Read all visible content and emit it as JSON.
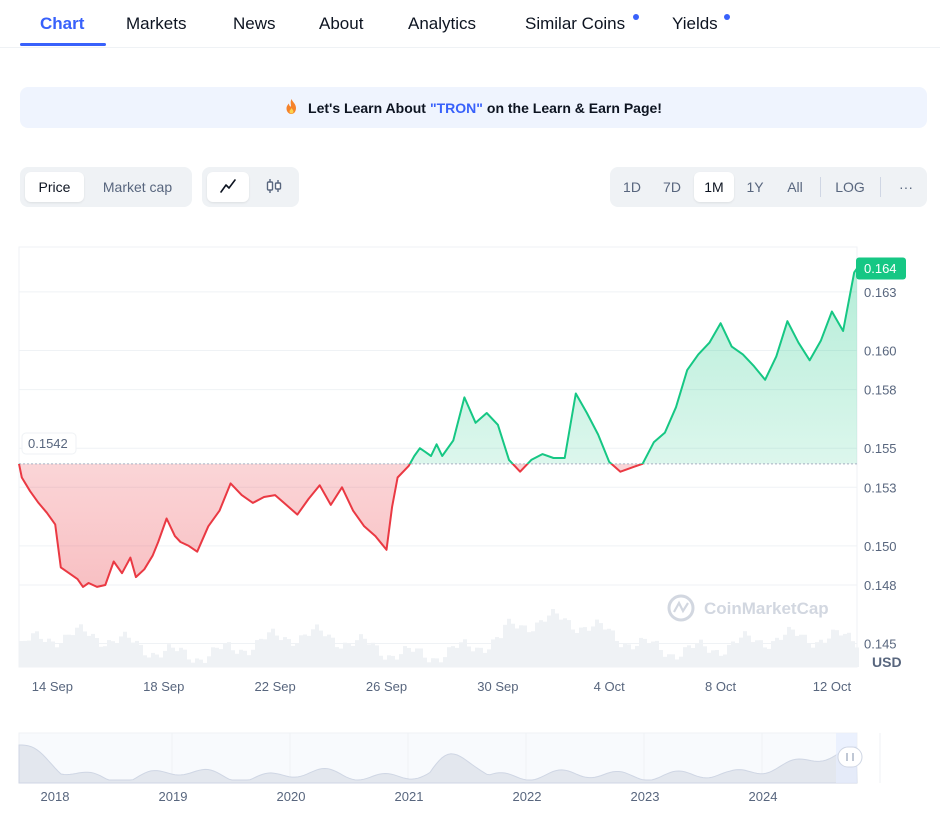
{
  "tabs": [
    {
      "label": "Chart",
      "active": true
    },
    {
      "label": "Markets"
    },
    {
      "label": "News"
    },
    {
      "label": "About"
    },
    {
      "label": "Analytics"
    },
    {
      "label": "Similar Coins",
      "dot": true
    },
    {
      "label": "Yields",
      "dot": true
    }
  ],
  "banner": {
    "icon": "fire-icon",
    "prefix": "Let's Learn About",
    "highlight": "\"TRON\"",
    "suffix": "on the Learn & Earn Page!"
  },
  "toolbar": {
    "metric_options": [
      "Price",
      "Market cap"
    ],
    "metric_selected": "Price",
    "chart_type_icons": [
      "line-chart-icon",
      "candlestick-icon"
    ],
    "ranges": [
      "1D",
      "7D",
      "1M",
      "1Y",
      "All"
    ],
    "range_selected": "1M",
    "log_label": "LOG",
    "more_label": "···"
  },
  "colors": {
    "up": "#16c784",
    "down": "#ea3943",
    "accent": "#3861fb"
  },
  "chart_data": {
    "type": "area",
    "baseline": 0.1542,
    "baseline_label": "0.1542",
    "current_label": "0.164",
    "y_ticks": [
      "0.163",
      "0.160",
      "0.158",
      "0.155",
      "0.153",
      "0.150",
      "0.148",
      "0.145"
    ],
    "y_range": [
      0.1438,
      0.1653
    ],
    "unit": "USD",
    "x_ticks": [
      "14 Sep",
      "18 Sep",
      "22 Sep",
      "26 Sep",
      "30 Sep",
      "4 Oct",
      "8 Oct",
      "12 Oct"
    ],
    "x_range": [
      12.8,
      42.9
    ],
    "watermark": "CoinMarketCap",
    "series": [
      {
        "x": [
          12.8,
          12.9,
          13.2,
          13.5,
          13.8,
          14.1,
          14.3,
          14.6,
          14.9,
          15.1,
          15.3,
          15.6,
          15.9,
          16.2,
          16.5,
          16.8,
          17.0,
          17.3,
          17.6,
          17.8,
          18.1,
          18.4,
          18.6,
          18.9,
          19.2,
          19.6,
          20.0,
          20.4,
          20.8,
          21.2,
          21.6,
          22.0,
          22.4,
          22.8,
          23.2,
          23.6,
          24.0,
          24.4,
          24.8,
          25.2,
          25.6,
          26.0,
          26.2,
          26.4,
          26.8,
          27.0,
          27.2,
          27.4,
          27.6,
          27.8,
          28.0,
          28.4,
          28.8,
          29.2,
          29.6,
          30.0,
          30.4,
          30.8,
          31.2,
          31.6,
          32.0,
          32.4,
          32.8,
          33.2,
          33.6,
          34.0,
          34.4,
          34.8,
          35.2,
          35.6,
          36.0,
          36.4,
          36.8,
          37.2,
          37.6,
          38.0,
          38.4,
          38.8,
          39.2,
          39.6,
          40.0,
          40.4,
          40.8,
          41.2,
          41.6,
          42.0,
          42.4,
          42.8,
          42.9
        ],
        "y": [
          0.1542,
          0.1535,
          0.1528,
          0.1522,
          0.1517,
          0.1511,
          0.1489,
          0.1486,
          0.1483,
          0.1479,
          0.1481,
          0.1479,
          0.148,
          0.1492,
          0.1486,
          0.1494,
          0.1484,
          0.1488,
          0.1495,
          0.1502,
          0.1514,
          0.1505,
          0.1502,
          0.15,
          0.1497,
          0.151,
          0.1518,
          0.1532,
          0.1526,
          0.1522,
          0.1525,
          0.1526,
          0.1521,
          0.1516,
          0.1524,
          0.1531,
          0.1521,
          0.153,
          0.1518,
          0.151,
          0.1505,
          0.1498,
          0.152,
          0.1535,
          0.1541,
          0.1546,
          0.155,
          0.1548,
          0.1546,
          0.1552,
          0.1546,
          0.1554,
          0.1576,
          0.1563,
          0.1568,
          0.1562,
          0.1544,
          0.1538,
          0.1544,
          0.1547,
          0.1545,
          0.1545,
          0.1578,
          0.1568,
          0.1557,
          0.1543,
          0.1538,
          0.154,
          0.1542,
          0.1553,
          0.1558,
          0.1571,
          0.159,
          0.1598,
          0.1604,
          0.1614,
          0.1602,
          0.1598,
          0.1592,
          0.1585,
          0.1597,
          0.1615,
          0.1604,
          0.1595,
          0.1605,
          0.162,
          0.161,
          0.164,
          0.1642
        ]
      }
    ]
  },
  "navigator": {
    "x_ticks": [
      "2018",
      "2019",
      "2020",
      "2021",
      "2022",
      "2023",
      "2024"
    ],
    "handle_icon": "drag-handle-icon"
  }
}
